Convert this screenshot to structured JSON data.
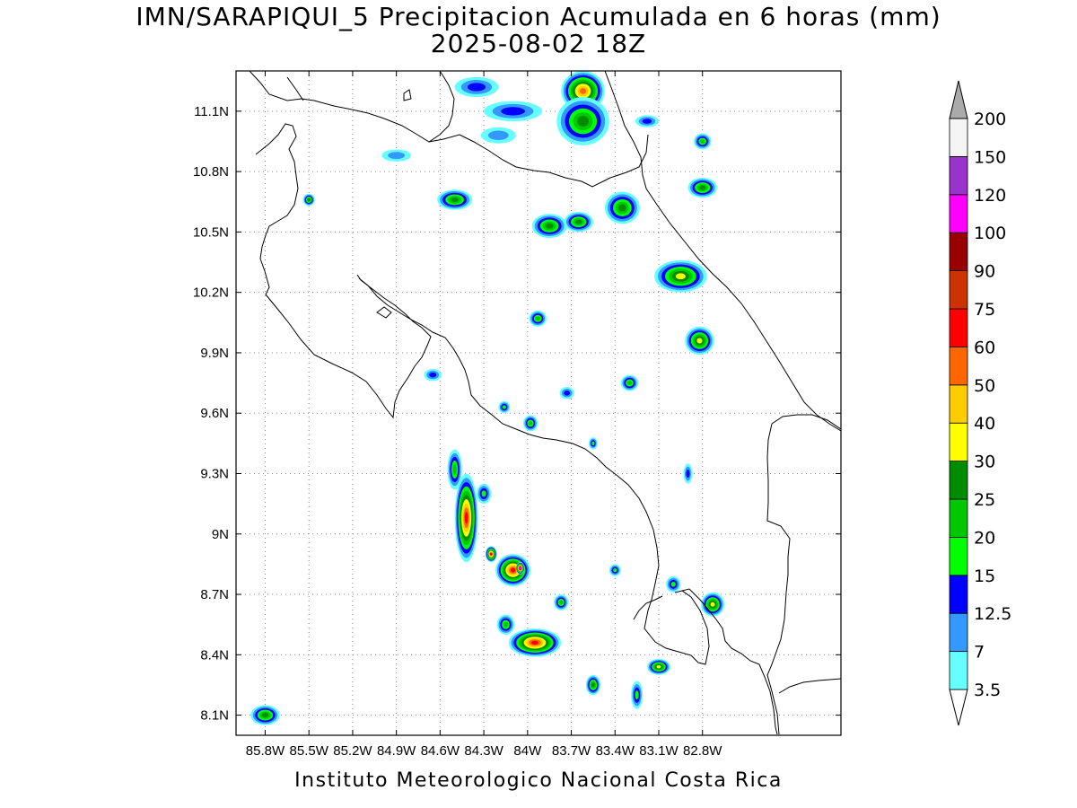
{
  "title_line1": "IMN/SARAPIQUI_5 Precipitacion Acumulada en 6 horas (mm)",
  "title_line2": "2025-08-02 18Z",
  "footer": "Instituto Meteorologico Nacional Costa Rica",
  "map": {
    "lon_range": [
      -86.0,
      -81.85
    ],
    "lat_range": [
      8.0,
      11.3
    ],
    "lon_ticks": [
      "85.8W",
      "85.5W",
      "85.2W",
      "84.9W",
      "84.6W",
      "84.3W",
      "84W",
      "83.7W",
      "83.4W",
      "83.1W",
      "82.8W"
    ],
    "lon_tick_values": [
      -85.8,
      -85.5,
      -85.2,
      -84.9,
      -84.6,
      -84.3,
      -84.0,
      -83.7,
      -83.4,
      -83.1,
      -82.8
    ],
    "lat_ticks": [
      "8.1N",
      "8.4N",
      "8.7N",
      "9N",
      "9.3N",
      "9.6N",
      "9.9N",
      "10.2N",
      "10.5N",
      "10.8N",
      "11.1N"
    ],
    "lat_tick_values": [
      8.1,
      8.4,
      8.7,
      9.0,
      9.3,
      9.6,
      9.9,
      10.2,
      10.5,
      10.8,
      11.1
    ],
    "grid": "dotted"
  },
  "colorbar": {
    "levels": [
      "3.5",
      "7",
      "12.5",
      "15",
      "20",
      "25",
      "30",
      "40",
      "50",
      "60",
      "75",
      "90",
      "100",
      "120",
      "150",
      "200"
    ],
    "colors": [
      "#66ffff",
      "#3399ff",
      "#0000ff",
      "#00ff00",
      "#00c800",
      "#008c00",
      "#ffff00",
      "#ffcc00",
      "#ff6600",
      "#ff0000",
      "#cc3300",
      "#990000",
      "#ff00ff",
      "#9933cc",
      "#f5f5f5",
      "#aaaaaa"
    ]
  },
  "precip_cells": [
    {
      "lon": -84.42,
      "lat": 9.08,
      "rx": 0.08,
      "ry": 0.22,
      "level": 9
    },
    {
      "lon": -84.5,
      "lat": 9.32,
      "rx": 0.05,
      "ry": 0.1,
      "level": 4
    },
    {
      "lon": -84.25,
      "lat": 8.9,
      "rx": 0.04,
      "ry": 0.04,
      "level": 9
    },
    {
      "lon": -84.1,
      "lat": 8.82,
      "rx": 0.12,
      "ry": 0.08,
      "level": 9
    },
    {
      "lon": -84.05,
      "lat": 8.83,
      "rx": 0.03,
      "ry": 0.03,
      "level": 12
    },
    {
      "lon": -83.95,
      "lat": 8.46,
      "rx": 0.18,
      "ry": 0.07,
      "level": 9
    },
    {
      "lon": -84.15,
      "lat": 8.55,
      "rx": 0.06,
      "ry": 0.05,
      "level": 4
    },
    {
      "lon": -83.62,
      "lat": 11.2,
      "rx": 0.15,
      "ry": 0.1,
      "level": 8
    },
    {
      "lon": -83.62,
      "lat": 11.05,
      "rx": 0.18,
      "ry": 0.12,
      "level": 5
    },
    {
      "lon": -84.5,
      "lat": 10.66,
      "rx": 0.12,
      "ry": 0.05,
      "level": 5
    },
    {
      "lon": -83.85,
      "lat": 10.53,
      "rx": 0.12,
      "ry": 0.06,
      "level": 5
    },
    {
      "lon": -83.65,
      "lat": 10.55,
      "rx": 0.1,
      "ry": 0.05,
      "level": 5
    },
    {
      "lon": -83.35,
      "lat": 10.62,
      "rx": 0.12,
      "ry": 0.08,
      "level": 5
    },
    {
      "lon": -82.95,
      "lat": 10.28,
      "rx": 0.18,
      "ry": 0.08,
      "level": 6
    },
    {
      "lon": -82.82,
      "lat": 9.96,
      "rx": 0.1,
      "ry": 0.07,
      "level": 6
    },
    {
      "lon": -82.8,
      "lat": 10.72,
      "rx": 0.1,
      "ry": 0.05,
      "level": 5
    },
    {
      "lon": -82.8,
      "lat": 10.95,
      "rx": 0.06,
      "ry": 0.04,
      "level": 4
    },
    {
      "lon": -83.93,
      "lat": 10.07,
      "rx": 0.06,
      "ry": 0.04,
      "level": 4
    },
    {
      "lon": -83.98,
      "lat": 9.55,
      "rx": 0.05,
      "ry": 0.04,
      "level": 4
    },
    {
      "lon": -83.3,
      "lat": 9.75,
      "rx": 0.06,
      "ry": 0.04,
      "level": 4
    },
    {
      "lon": -85.8,
      "lat": 8.1,
      "rx": 0.1,
      "ry": 0.05,
      "level": 5
    },
    {
      "lon": -83.55,
      "lat": 8.25,
      "rx": 0.05,
      "ry": 0.05,
      "level": 5
    },
    {
      "lon": -83.1,
      "lat": 8.34,
      "rx": 0.08,
      "ry": 0.04,
      "level": 6
    },
    {
      "lon": -82.73,
      "lat": 8.65,
      "rx": 0.08,
      "ry": 0.06,
      "level": 6
    },
    {
      "lon": -83.77,
      "lat": 8.66,
      "rx": 0.05,
      "ry": 0.04,
      "level": 4
    },
    {
      "lon": -83.25,
      "lat": 8.2,
      "rx": 0.04,
      "ry": 0.07,
      "level": 3
    },
    {
      "lon": -83.0,
      "lat": 8.75,
      "rx": 0.05,
      "ry": 0.04,
      "level": 3
    },
    {
      "lon": -83.4,
      "lat": 8.82,
      "rx": 0.04,
      "ry": 0.03,
      "level": 3
    },
    {
      "lon": -84.3,
      "lat": 9.2,
      "rx": 0.05,
      "ry": 0.05,
      "level": 3
    },
    {
      "lon": -84.65,
      "lat": 9.79,
      "rx": 0.06,
      "ry": 0.03,
      "level": 2
    },
    {
      "lon": -84.16,
      "lat": 9.63,
      "rx": 0.04,
      "ry": 0.03,
      "level": 3
    },
    {
      "lon": -83.73,
      "lat": 9.7,
      "rx": 0.05,
      "ry": 0.03,
      "level": 2
    },
    {
      "lon": -84.1,
      "lat": 11.1,
      "rx": 0.2,
      "ry": 0.05,
      "level": 2
    },
    {
      "lon": -84.2,
      "lat": 10.98,
      "rx": 0.12,
      "ry": 0.04,
      "level": 1
    },
    {
      "lon": -84.9,
      "lat": 10.88,
      "rx": 0.1,
      "ry": 0.03,
      "level": 1
    },
    {
      "lon": -85.5,
      "lat": 10.66,
      "rx": 0.04,
      "ry": 0.03,
      "level": 5
    },
    {
      "lon": -82.9,
      "lat": 9.3,
      "rx": 0.03,
      "ry": 0.05,
      "level": 2
    },
    {
      "lon": -83.55,
      "lat": 9.45,
      "rx": 0.03,
      "ry": 0.03,
      "level": 3
    },
    {
      "lon": -84.35,
      "lat": 11.22,
      "rx": 0.15,
      "ry": 0.05,
      "level": 2
    },
    {
      "lon": -83.18,
      "lat": 11.05,
      "rx": 0.08,
      "ry": 0.03,
      "level": 2
    }
  ]
}
